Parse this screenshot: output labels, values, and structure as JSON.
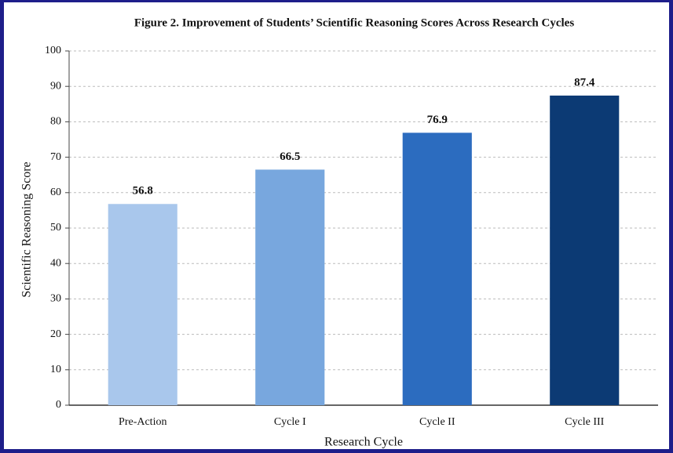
{
  "chart_data": {
    "type": "bar",
    "title": "Figure 2. Improvement of Students’ Scientific Reasoning Scores Across Research Cycles",
    "xlabel": "Research Cycle",
    "ylabel": "Scientific Reasoning Score",
    "categories": [
      "Pre-Action",
      "Cycle I",
      "Cycle II",
      "Cycle III"
    ],
    "values": [
      56.8,
      66.5,
      76.9,
      87.4
    ],
    "colors": [
      "#a9c7ec",
      "#78a7de",
      "#2c6cbf",
      "#0c3a74"
    ],
    "ylim": [
      0,
      100
    ],
    "yticks": [
      0,
      10,
      20,
      30,
      40,
      50,
      60,
      70,
      80,
      90,
      100
    ],
    "grid": true
  }
}
